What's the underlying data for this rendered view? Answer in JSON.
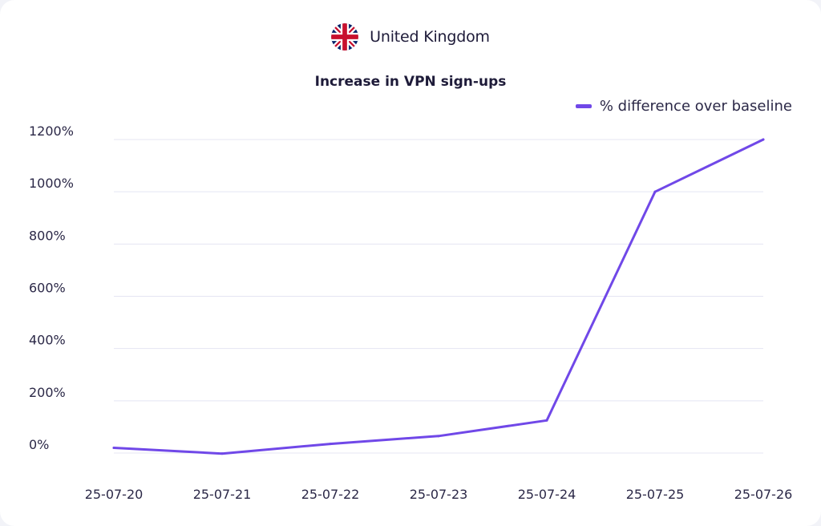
{
  "header": {
    "country": "United Kingdom",
    "flag_icon": "uk-flag-icon"
  },
  "colors": {
    "line": "#7048e8",
    "grid": "#e4e5f3",
    "text": "#2b2847",
    "flag_blue": "#012169",
    "flag_red": "#c8102e"
  },
  "chart_data": {
    "type": "line",
    "title": "Increase in VPN sign-ups",
    "xlabel": "",
    "ylabel": "",
    "categories": [
      "25-07-20",
      "25-07-21",
      "25-07-22",
      "25-07-23",
      "25-07-24",
      "25-07-25",
      "25-07-26"
    ],
    "series": [
      {
        "name": "% difference over baseline",
        "values": [
          20,
          -2,
          35,
          65,
          125,
          1000,
          1200
        ]
      }
    ],
    "ylim": [
      0,
      1200
    ],
    "yticks": [
      0,
      200,
      400,
      600,
      800,
      1000,
      1200
    ],
    "ytick_labels": [
      "0%",
      "200%",
      "400%",
      "600%",
      "800%",
      "1000%",
      "1200%"
    ],
    "grid": true,
    "legend_position": "top-right"
  }
}
